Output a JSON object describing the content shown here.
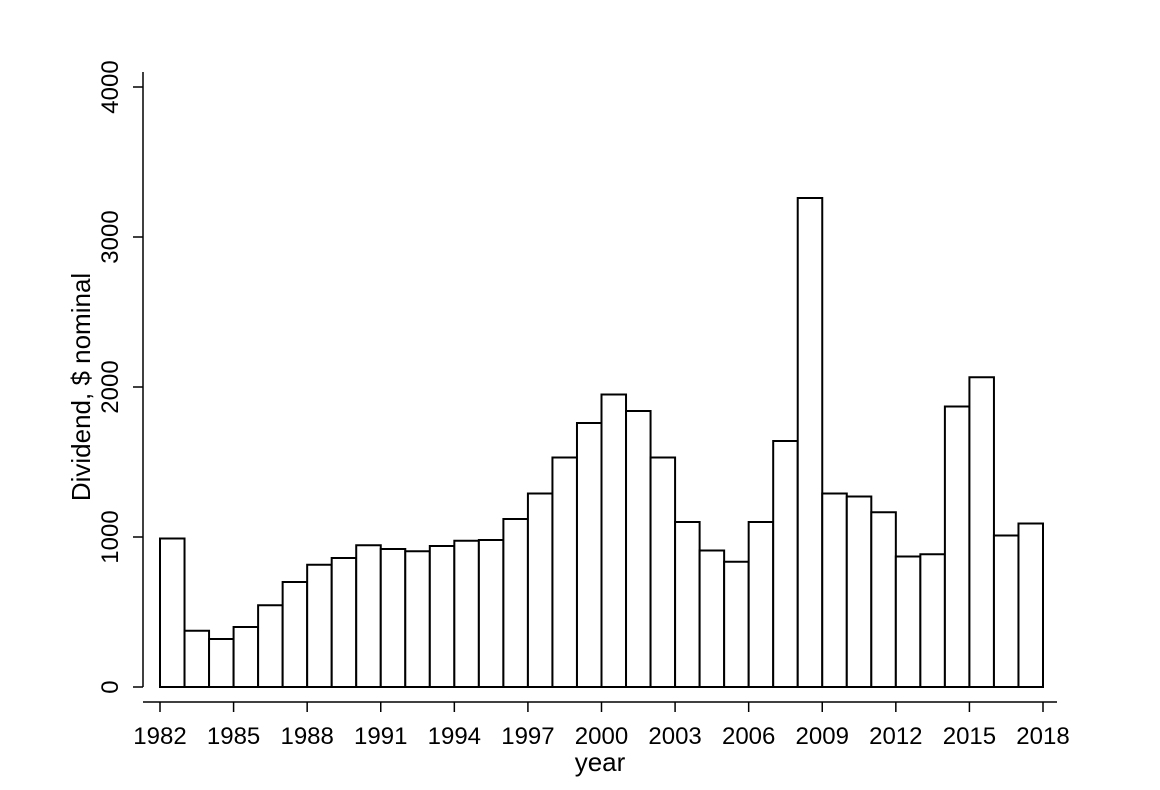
{
  "chart_data": {
    "type": "bar",
    "title": "",
    "xlabel": "year",
    "ylabel": "Dividend, $ nominal",
    "ylim": [
      0,
      4000
    ],
    "xlim": [
      1981.5,
      2018
    ],
    "yticks": [
      0,
      1000,
      2000,
      3000,
      4000
    ],
    "xticks": [
      1982,
      1985,
      1988,
      1991,
      1994,
      1997,
      2000,
      2003,
      2006,
      2009,
      2012,
      2015,
      2018
    ],
    "grid": false,
    "x": [
      1982,
      1983,
      1984,
      1985,
      1986,
      1987,
      1988,
      1989,
      1990,
      1991,
      1992,
      1993,
      1994,
      1995,
      1996,
      1997,
      1998,
      1999,
      2000,
      2001,
      2002,
      2003,
      2004,
      2005,
      2006,
      2007,
      2008,
      2009,
      2010,
      2011,
      2012,
      2013,
      2014,
      2015,
      2016,
      2017
    ],
    "values": [
      990,
      375,
      320,
      400,
      545,
      700,
      815,
      860,
      945,
      920,
      905,
      940,
      975,
      980,
      1120,
      1290,
      1530,
      1760,
      1950,
      1840,
      1530,
      1100,
      910,
      835,
      1100,
      1640,
      3260,
      1290,
      1270,
      1165,
      870,
      885,
      1870,
      2065,
      1010,
      1090
    ],
    "colors": {
      "bar_fill": "#ffffff",
      "bar_stroke": "#000000"
    }
  }
}
